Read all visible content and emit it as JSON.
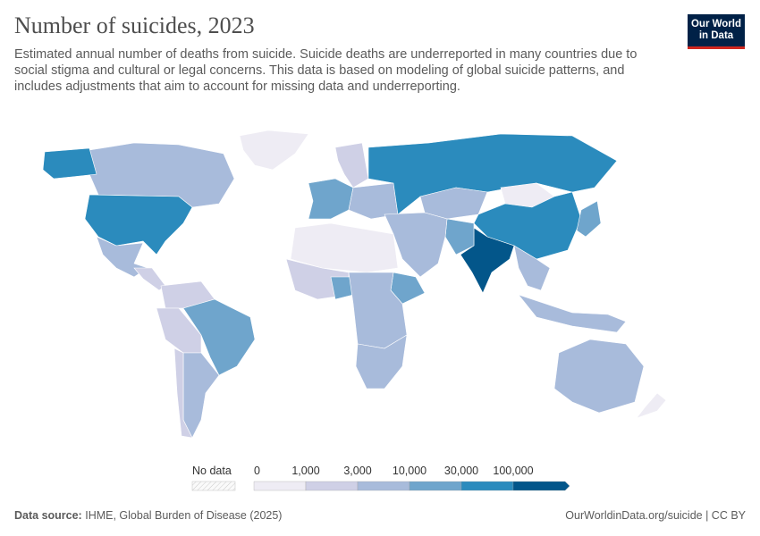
{
  "header": {
    "title": "Number of suicides, 2023",
    "subtitle": "Estimated annual number of deaths from suicide. Suicide deaths are underreported in many countries due to social stigma and cultural or legal concerns. This data is based on modeling of global suicide patterns, and includes adjustments that aim to account for missing data and underreporting.",
    "logo": [
      "Our World",
      "in Data"
    ]
  },
  "legend": {
    "no_data_label": "No data",
    "ticks": [
      "0",
      "1,000",
      "3,000",
      "10,000",
      "30,000",
      "100,000"
    ],
    "colors": [
      "#eeecf4",
      "#cfd0e6",
      "#a8bbdb",
      "#6fa5cc",
      "#2b8bbd",
      "#03568a"
    ],
    "no_data_color": "#e6e6e6"
  },
  "map": {
    "regions": [
      {
        "name": "Greenland",
        "bin": 0
      },
      {
        "name": "Canada",
        "bin": 2
      },
      {
        "name": "United States",
        "bin": 4
      },
      {
        "name": "Mexico",
        "bin": 2
      },
      {
        "name": "Central America",
        "bin": 1
      },
      {
        "name": "Colombia/Venezuela",
        "bin": 1
      },
      {
        "name": "Peru/Bolivia",
        "bin": 1
      },
      {
        "name": "Brazil",
        "bin": 3
      },
      {
        "name": "Argentina",
        "bin": 2
      },
      {
        "name": "Chile",
        "bin": 1
      },
      {
        "name": "Western Europe",
        "bin": 3
      },
      {
        "name": "Northern Europe",
        "bin": 1
      },
      {
        "name": "Eastern Europe",
        "bin": 2
      },
      {
        "name": "Russia",
        "bin": 4
      },
      {
        "name": "Kazakhstan",
        "bin": 2
      },
      {
        "name": "Mongolia",
        "bin": 0
      },
      {
        "name": "China",
        "bin": 4
      },
      {
        "name": "India",
        "bin": 5
      },
      {
        "name": "Pakistan",
        "bin": 3
      },
      {
        "name": "Middle East",
        "bin": 2
      },
      {
        "name": "North Africa",
        "bin": 0
      },
      {
        "name": "West Africa",
        "bin": 1
      },
      {
        "name": "Nigeria",
        "bin": 3
      },
      {
        "name": "Ethiopia",
        "bin": 3
      },
      {
        "name": "Central Africa",
        "bin": 2
      },
      {
        "name": "Southern Africa",
        "bin": 2
      },
      {
        "name": "South East Asia",
        "bin": 2
      },
      {
        "name": "Indonesia",
        "bin": 2
      },
      {
        "name": "Japan",
        "bin": 3
      },
      {
        "name": "Australia",
        "bin": 2
      },
      {
        "name": "New Zealand",
        "bin": 0
      }
    ]
  },
  "footer": {
    "source_label": "Data source:",
    "source": "IHME, Global Burden of Disease (2025)",
    "link": "OurWorldinData.org/suicide | CC BY"
  }
}
